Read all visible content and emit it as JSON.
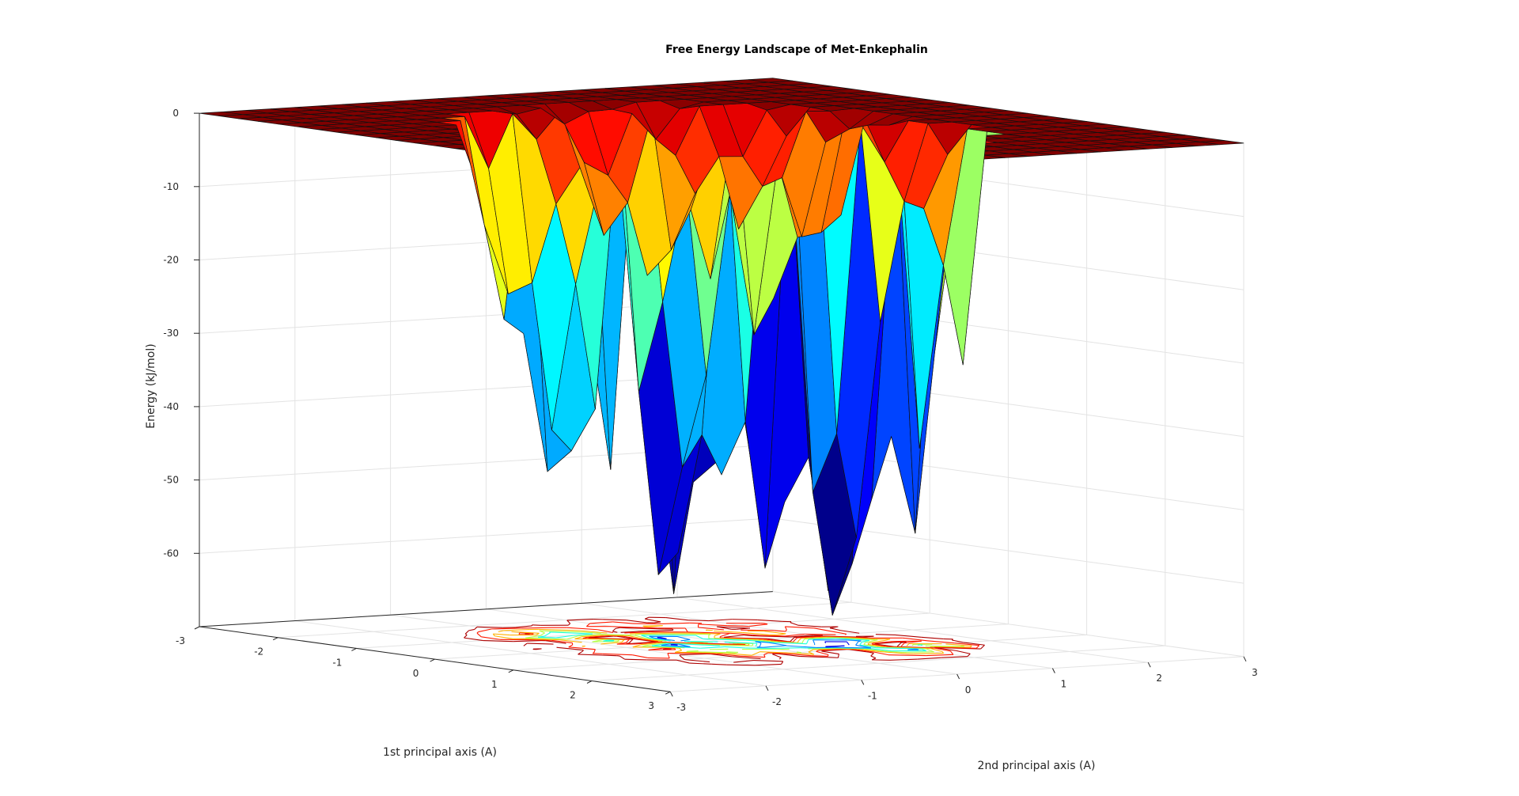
{
  "chart_data": {
    "type": "surface3d",
    "title": "Free Energy Landscape of Met-Enkephalin",
    "xlabel": "1st principal axis (A)",
    "ylabel": "2nd principal axis (A)",
    "zlabel": "Energy (kJ/mol)",
    "xlim": [
      -3,
      3
    ],
    "ylim": [
      -3,
      3
    ],
    "zlim": [
      -70,
      0
    ],
    "x_ticks": [
      "-3",
      "-2",
      "-1",
      "0",
      "1",
      "2",
      "3"
    ],
    "y_ticks": [
      "-3",
      "-2",
      "-1",
      "0",
      "1",
      "2",
      "3"
    ],
    "z_ticks": [
      "0",
      "-10",
      "-20",
      "-30",
      "-40",
      "-50",
      "-60"
    ],
    "colormap": "jet",
    "grid": true,
    "contour_projection": true,
    "plateau_energy": 0,
    "minimum_energy": -67,
    "wells": [
      {
        "x": -1.1,
        "y": -0.9,
        "energy": -52
      },
      {
        "x": -0.7,
        "y": -0.6,
        "energy": -62
      },
      {
        "x": -0.4,
        "y": -0.3,
        "energy": -65
      },
      {
        "x": 0.0,
        "y": -0.4,
        "energy": -66
      },
      {
        "x": 0.3,
        "y": 0.1,
        "energy": -67
      },
      {
        "x": 0.8,
        "y": 0.6,
        "energy": -66
      },
      {
        "x": 1.1,
        "y": 1.0,
        "energy": -60
      },
      {
        "x": 1.4,
        "y": 1.5,
        "energy": -35
      },
      {
        "x": 0.5,
        "y": 0.8,
        "energy": -67
      }
    ],
    "colors": {
      "deep": "#00008f",
      "low": "#0000ff",
      "mid_low": "#00aaff",
      "mid": "#70ff90",
      "mid_high": "#ffff00",
      "high": "#ff5500",
      "top": "#800000"
    }
  }
}
